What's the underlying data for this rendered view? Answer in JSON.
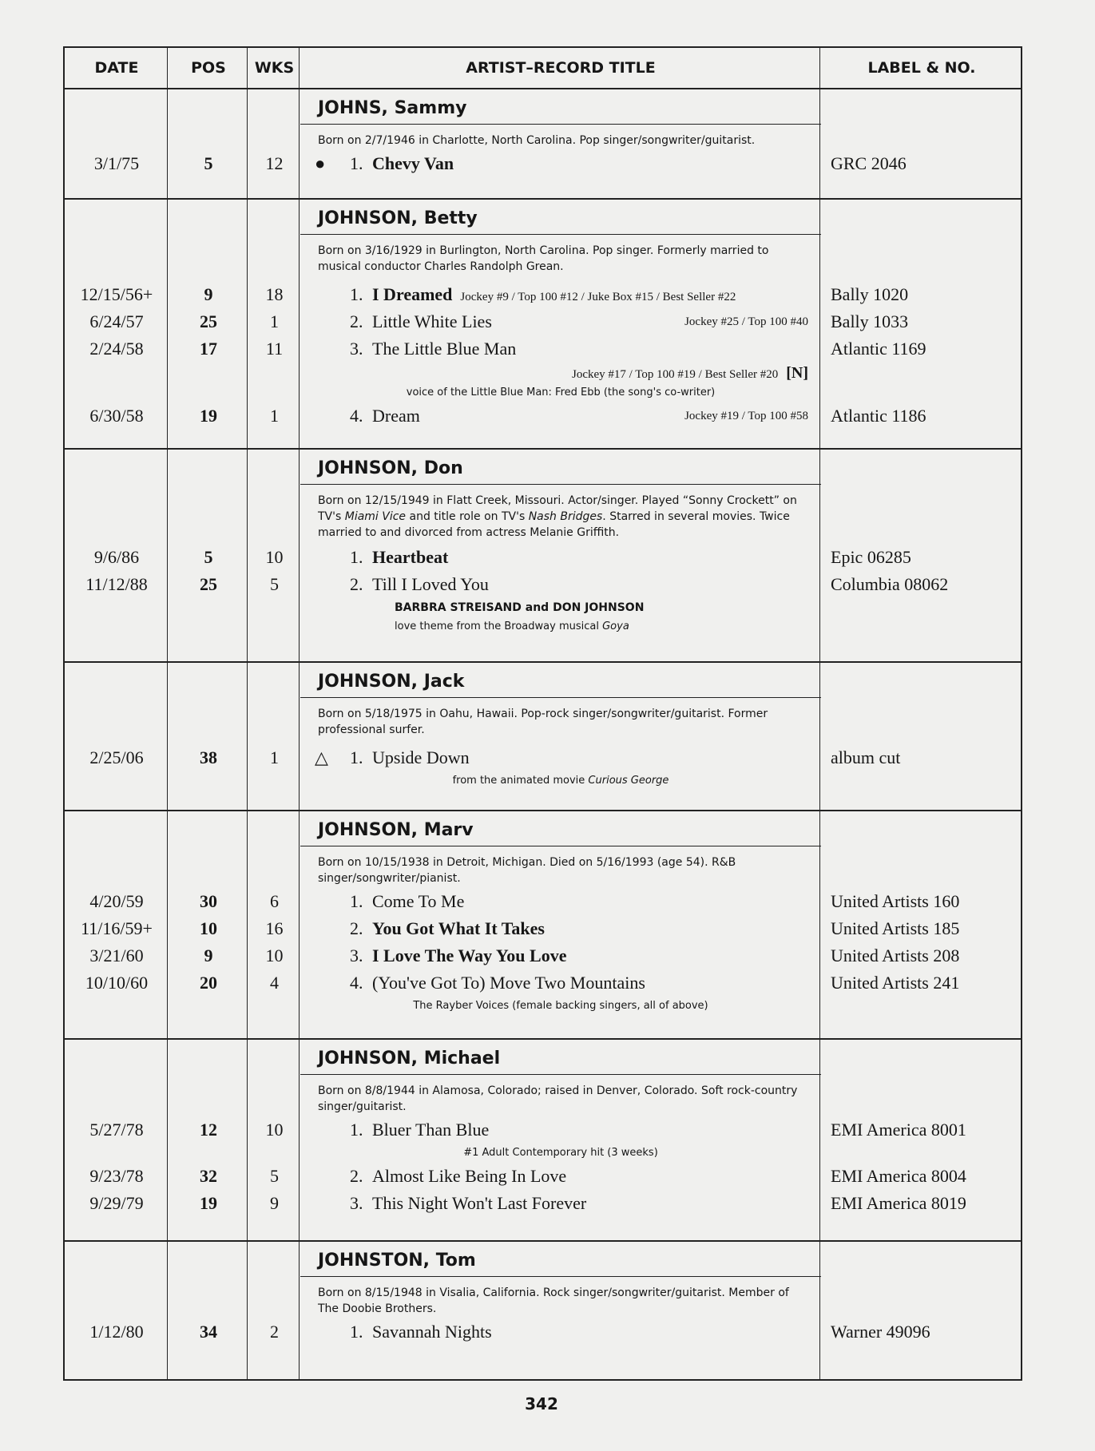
{
  "header": {
    "date": "DATE",
    "pos": "POS",
    "wks": "WKS",
    "artist": "ARTIST–RECORD TITLE",
    "label": "LABEL & NO."
  },
  "sections": [
    {
      "name": "JOHNS, Sammy",
      "bio": [
        {
          "t": "Born on 2/7/1946 in Charlotte, North Carolina. Pop singer/songwriter/guitarist."
        }
      ],
      "tracks": [
        {
          "date": "3/1/75",
          "pos": "5",
          "wks": "12",
          "marker": "●",
          "num": "1.",
          "title": "Chevy Van",
          "bold": true,
          "label": "GRC 2046"
        }
      ]
    },
    {
      "name": "JOHNSON, Betty",
      "bio": [
        {
          "t": "Born on 3/16/1929 in Burlington, North Carolina. Pop singer. Formerly married to musical conductor Charles Randolph Grean."
        }
      ],
      "tracks": [
        {
          "date": "12/15/56+",
          "pos": "9",
          "wks": "18",
          "num": "1.",
          "title": "I Dreamed",
          "bold": true,
          "chart": "Jockey #9 / Top 100 #12 / Juke Box #15 / Best Seller #22",
          "chart_inline": true,
          "label": "Bally 1020"
        },
        {
          "date": "6/24/57",
          "pos": "25",
          "wks": "1",
          "num": "2.",
          "title": "Little White Lies",
          "chart": "Jockey #25 / Top 100 #40",
          "label": "Bally 1033"
        },
        {
          "date": "2/24/58",
          "pos": "17",
          "wks": "11",
          "num": "3.",
          "title": "The Little Blue Man",
          "chart_below": "Jockey #17 / Top 100 #19 / Best Seller #20",
          "tag": "[N]",
          "label": "Atlantic 1169",
          "notes": [
            {
              "segs": [
                {
                  "t": "voice of the Little Blue Man: Fred Ebb (the song's co-writer)"
                }
              ],
              "center": true
            }
          ]
        },
        {
          "date": "6/30/58",
          "pos": "19",
          "wks": "1",
          "num": "4.",
          "title": "Dream",
          "chart": "Jockey #19 / Top 100 #58",
          "label": "Atlantic 1186"
        }
      ]
    },
    {
      "name": "JOHNSON, Don",
      "bio": [
        {
          "t": "Born on 12/15/1949 in Flatt Creek, Missouri. Actor/singer. Played “Sonny Crockett” on TV's "
        },
        {
          "t": "Miami Vice",
          "i": true
        },
        {
          "t": " and title role on TV's "
        },
        {
          "t": "Nash Bridges",
          "i": true
        },
        {
          "t": ". Starred in several movies. Twice married to and divorced from actress Melanie Griffith."
        }
      ],
      "tracks": [
        {
          "date": "9/6/86",
          "pos": "5",
          "wks": "10",
          "num": "1.",
          "title": "Heartbeat",
          "bold": true,
          "label": "Epic 06285"
        },
        {
          "date": "11/12/88",
          "pos": "25",
          "wks": "5",
          "num": "2.",
          "title": "Till I Loved You",
          "label": "Columbia 08062",
          "notes": [
            {
              "segs": [
                {
                  "t": "BARBRA STREISAND and DON JOHNSON"
                }
              ],
              "bold": true
            },
            {
              "segs": [
                {
                  "t": "love theme from the Broadway musical "
                },
                {
                  "t": "Goya",
                  "i": true
                }
              ]
            }
          ]
        }
      ]
    },
    {
      "name": "JOHNSON, Jack",
      "bio": [
        {
          "t": "Born on 5/18/1975 in Oahu, Hawaii. Pop-rock singer/songwriter/guitarist. Former professional surfer."
        }
      ],
      "tracks": [
        {
          "date": "2/25/06",
          "pos": "38",
          "wks": "1",
          "marker": "△",
          "num": "1.",
          "title": "Upside Down",
          "label": "album cut",
          "notes": [
            {
              "segs": [
                {
                  "t": "from the animated movie "
                },
                {
                  "t": "Curious George",
                  "i": true
                }
              ],
              "center": true
            }
          ]
        }
      ]
    },
    {
      "name": "JOHNSON, Marv",
      "bio": [
        {
          "t": "Born on 10/15/1938 in Detroit, Michigan. Died on 5/16/1993 (age 54). R&B singer/songwriter/pianist."
        }
      ],
      "tracks": [
        {
          "date": "4/20/59",
          "pos": "30",
          "wks": "6",
          "num": "1.",
          "title": "Come To Me",
          "label": "United Artists 160"
        },
        {
          "date": "11/16/59+",
          "pos": "10",
          "wks": "16",
          "num": "2.",
          "title": "You Got What It Takes",
          "bold": true,
          "label": "United Artists 185"
        },
        {
          "date": "3/21/60",
          "pos": "9",
          "wks": "10",
          "num": "3.",
          "title": "I Love The Way You Love",
          "bold": true,
          "label": "United Artists 208"
        },
        {
          "date": "10/10/60",
          "pos": "20",
          "wks": "4",
          "num": "4.",
          "title": "(You've Got To) Move Two Mountains",
          "label": "United Artists 241",
          "notes": [
            {
              "segs": [
                {
                  "t": "The Rayber Voices (female backing singers, all of above)"
                }
              ],
              "center": true
            }
          ]
        }
      ]
    },
    {
      "name": "JOHNSON, Michael",
      "bio": [
        {
          "t": "Born on 8/8/1944 in Alamosa, Colorado; raised in Denver, Colorado. Soft rock-country singer/guitarist."
        }
      ],
      "tracks": [
        {
          "date": "5/27/78",
          "pos": "12",
          "wks": "10",
          "num": "1.",
          "title": "Bluer Than Blue",
          "label": "EMI America 8001",
          "notes": [
            {
              "segs": [
                {
                  "t": "#1 Adult Contemporary hit (3 weeks)"
                }
              ],
              "center": true
            }
          ]
        },
        {
          "date": "9/23/78",
          "pos": "32",
          "wks": "5",
          "num": "2.",
          "title": "Almost Like Being In Love",
          "label": "EMI America 8004"
        },
        {
          "date": "9/29/79",
          "pos": "19",
          "wks": "9",
          "num": "3.",
          "title": "This Night Won't Last Forever",
          "label": "EMI America 8019"
        }
      ]
    },
    {
      "name": "JOHNSTON, Tom",
      "bio": [
        {
          "t": "Born on 8/15/1948 in Visalia, California. Rock singer/songwriter/guitarist. Member of The Doobie Brothers."
        }
      ],
      "tracks": [
        {
          "date": "1/12/80",
          "pos": "34",
          "wks": "2",
          "num": "1.",
          "title": "Savannah Nights",
          "label": "Warner 49096"
        }
      ]
    }
  ],
  "page_number": "342"
}
